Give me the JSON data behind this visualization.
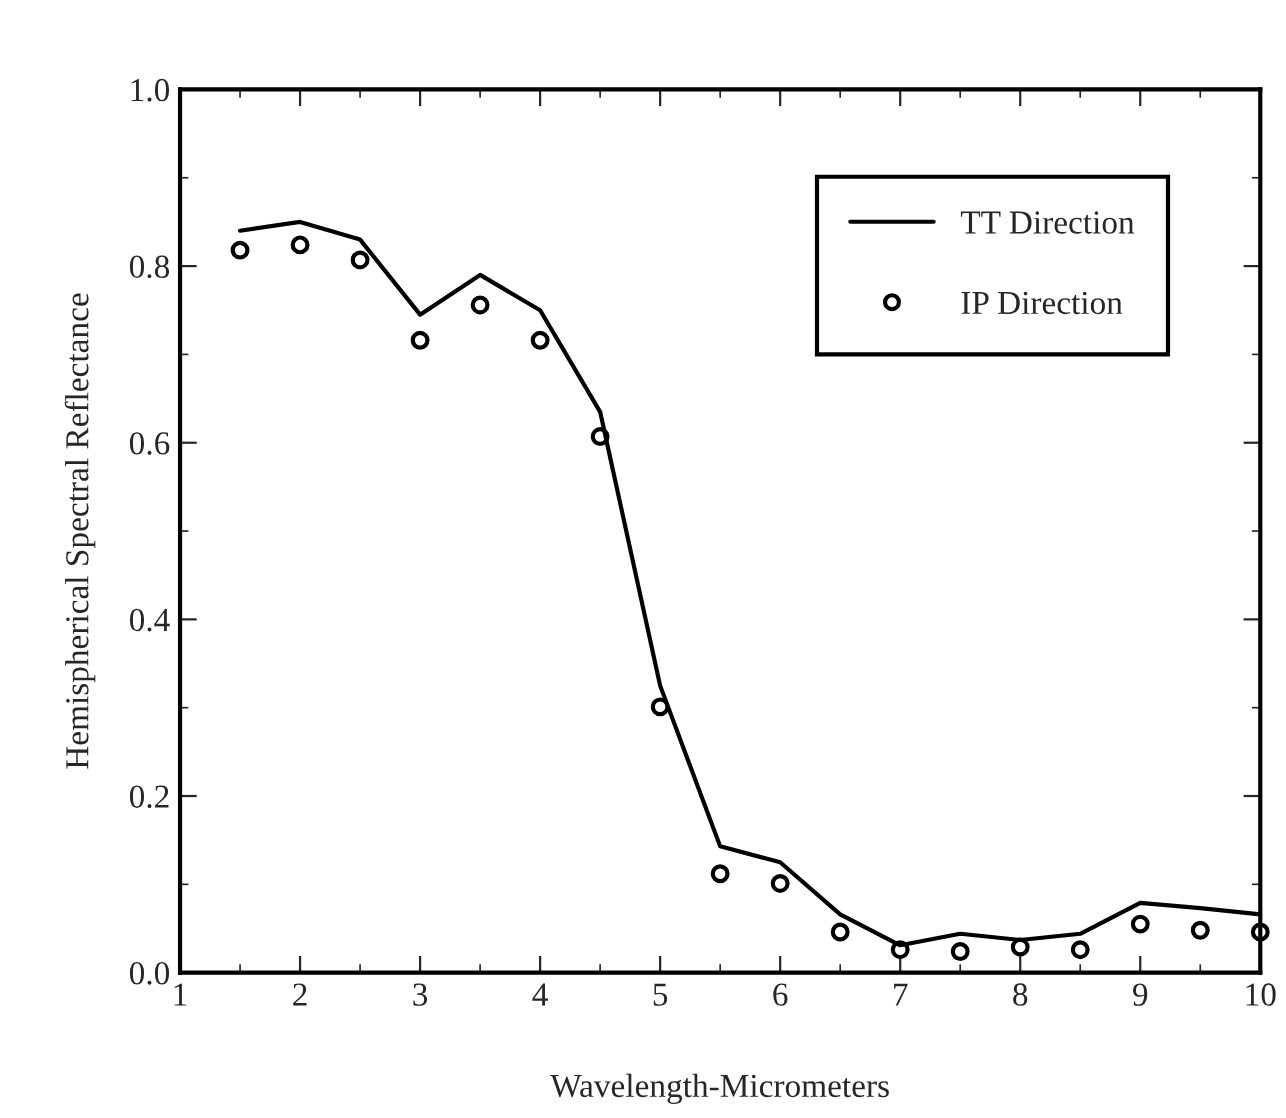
{
  "chart_data": {
    "type": "line",
    "xlabel": "Wavelength-Micrometers",
    "ylabel": "Hemispherical Spectral Reflectance",
    "x": [
      1.5,
      2,
      2.5,
      3,
      3.5,
      4,
      4.5,
      5,
      5.5,
      6,
      6.5,
      7,
      7.5,
      8,
      8.5,
      9,
      9.5,
      10
    ],
    "series": [
      {
        "name": "TT Direction",
        "color": "#000000",
        "marker": "none",
        "line_style": "solid",
        "values": [
          0.84,
          0.85,
          0.83,
          0.745,
          0.79,
          0.75,
          0.635,
          0.325,
          0.143,
          0.125,
          0.066,
          0.031,
          0.044,
          0.037,
          0.044,
          0.079,
          0.073,
          0.066
        ]
      },
      {
        "name": "IP Direction",
        "type": "scatter",
        "color": "#000000",
        "marker": "circle",
        "values": [
          0.818,
          0.824,
          0.807,
          0.716,
          0.756,
          0.716,
          0.607,
          0.301,
          0.112,
          0.101,
          0.046,
          0.026,
          0.024,
          0.029,
          0.026,
          0.055,
          0.048,
          0.046
        ]
      }
    ],
    "xlim": [
      1,
      10
    ],
    "ylim": [
      0,
      1.0
    ],
    "xticks": [
      1,
      2,
      3,
      4,
      5,
      6,
      7,
      8,
      9,
      10
    ],
    "yticks": [
      {
        "value": 0,
        "label": "0.0"
      },
      0.2,
      0.4,
      0.6,
      0.8,
      {
        "value": 1.0,
        "label": "1.0"
      }
    ],
    "grid": false,
    "legend": "top right"
  }
}
